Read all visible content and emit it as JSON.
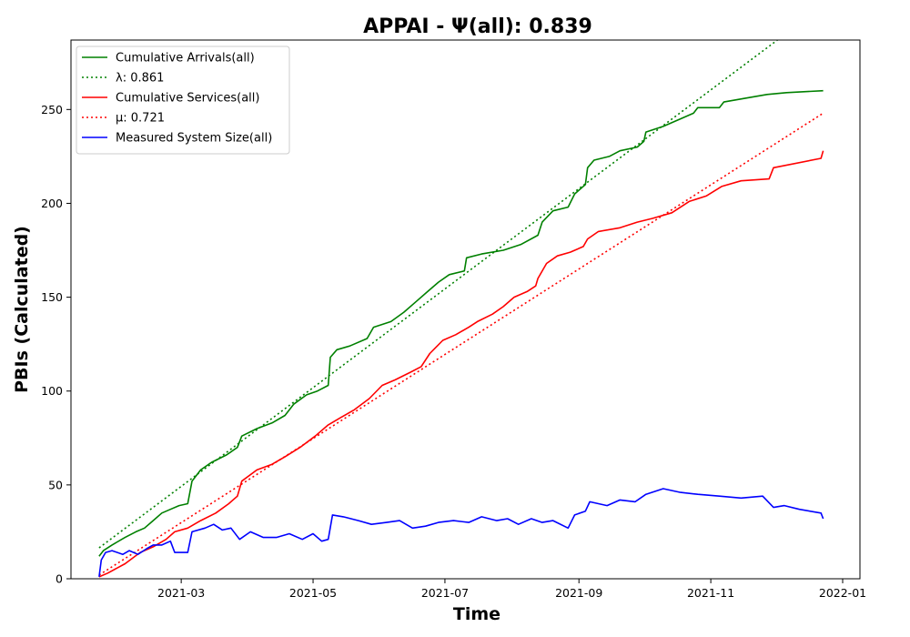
{
  "chart_data": {
    "type": "line",
    "title": "APPAI -  Ψ(all): 0.839",
    "xlabel": "Time",
    "ylabel": "PBIs (Calculated)",
    "x_type": "date",
    "xlim": [
      "2021-01-09",
      "2022-01-09"
    ],
    "ylim": [
      0,
      287
    ],
    "x_ticks": [
      "2021-03-01",
      "2021-05-01",
      "2021-07-01",
      "2021-09-01",
      "2021-11-01",
      "2022-01-01"
    ],
    "x_tick_labels": [
      "2021-03",
      "2021-05",
      "2021-07",
      "2021-09",
      "2021-11",
      "2022-01"
    ],
    "y_ticks": [
      0,
      50,
      100,
      150,
      200,
      250
    ],
    "grid": false,
    "legend_position": "top-left",
    "series": [
      {
        "name": "Cumulative Arrivals(all)",
        "color": "#008000",
        "style": "solid",
        "points": [
          [
            "2021-01-22",
            12
          ],
          [
            "2021-01-24",
            15
          ],
          [
            "2021-01-28",
            18
          ],
          [
            "2021-02-03",
            22
          ],
          [
            "2021-02-08",
            25
          ],
          [
            "2021-02-12",
            27
          ],
          [
            "2021-02-16",
            31
          ],
          [
            "2021-02-20",
            35
          ],
          [
            "2021-02-24",
            37
          ],
          [
            "2021-02-28",
            39
          ],
          [
            "2021-03-04",
            40
          ],
          [
            "2021-03-06",
            52
          ],
          [
            "2021-03-10",
            58
          ],
          [
            "2021-03-15",
            62
          ],
          [
            "2021-03-22",
            66
          ],
          [
            "2021-03-27",
            70
          ],
          [
            "2021-03-29",
            76
          ],
          [
            "2021-04-05",
            80
          ],
          [
            "2021-04-12",
            83
          ],
          [
            "2021-04-18",
            87
          ],
          [
            "2021-04-22",
            93
          ],
          [
            "2021-04-28",
            98
          ],
          [
            "2021-05-03",
            100
          ],
          [
            "2021-05-08",
            103
          ],
          [
            "2021-05-09",
            118
          ],
          [
            "2021-05-12",
            122
          ],
          [
            "2021-05-18",
            124
          ],
          [
            "2021-05-26",
            128
          ],
          [
            "2021-05-29",
            134
          ],
          [
            "2021-06-06",
            137
          ],
          [
            "2021-06-12",
            142
          ],
          [
            "2021-06-18",
            148
          ],
          [
            "2021-06-23",
            153
          ],
          [
            "2021-06-28",
            158
          ],
          [
            "2021-07-03",
            162
          ],
          [
            "2021-07-10",
            164
          ],
          [
            "2021-07-11",
            171
          ],
          [
            "2021-07-18",
            173
          ],
          [
            "2021-07-28",
            175
          ],
          [
            "2021-08-05",
            178
          ],
          [
            "2021-08-13",
            183
          ],
          [
            "2021-08-15",
            190
          ],
          [
            "2021-08-20",
            196
          ],
          [
            "2021-08-27",
            198
          ],
          [
            "2021-08-30",
            205
          ],
          [
            "2021-09-04",
            210
          ],
          [
            "2021-09-05",
            219
          ],
          [
            "2021-09-08",
            223
          ],
          [
            "2021-09-15",
            225
          ],
          [
            "2021-09-20",
            228
          ],
          [
            "2021-09-28",
            230
          ],
          [
            "2021-10-01",
            233
          ],
          [
            "2021-10-02",
            238
          ],
          [
            "2021-10-10",
            241
          ],
          [
            "2021-10-18",
            245
          ],
          [
            "2021-10-24",
            248
          ],
          [
            "2021-10-26",
            251
          ],
          [
            "2021-11-05",
            251
          ],
          [
            "2021-11-07",
            254
          ],
          [
            "2021-11-17",
            256
          ],
          [
            "2021-11-27",
            258
          ],
          [
            "2021-12-06",
            259
          ],
          [
            "2021-12-23",
            260
          ]
        ]
      },
      {
        "name": "λ: 0.861",
        "color": "#008000",
        "style": "dotted",
        "points": [
          [
            "2021-01-22",
            16.5
          ],
          [
            "2021-12-03",
            288
          ]
        ]
      },
      {
        "name": "Cumulative Services(all)",
        "color": "#ff0000",
        "style": "solid",
        "points": [
          [
            "2021-01-22",
            1
          ],
          [
            "2021-01-26",
            3
          ],
          [
            "2021-02-03",
            8
          ],
          [
            "2021-02-10",
            14
          ],
          [
            "2021-02-16",
            17
          ],
          [
            "2021-02-22",
            21
          ],
          [
            "2021-02-26",
            25
          ],
          [
            "2021-03-04",
            27
          ],
          [
            "2021-03-10",
            31
          ],
          [
            "2021-03-17",
            35
          ],
          [
            "2021-03-23",
            40
          ],
          [
            "2021-03-27",
            44
          ],
          [
            "2021-03-29",
            52
          ],
          [
            "2021-04-05",
            58
          ],
          [
            "2021-04-12",
            61
          ],
          [
            "2021-04-18",
            65
          ],
          [
            "2021-04-25",
            70
          ],
          [
            "2021-05-02",
            76
          ],
          [
            "2021-05-08",
            82
          ],
          [
            "2021-05-14",
            86
          ],
          [
            "2021-05-20",
            90
          ],
          [
            "2021-05-27",
            96
          ],
          [
            "2021-06-02",
            103
          ],
          [
            "2021-06-08",
            106
          ],
          [
            "2021-06-15",
            110
          ],
          [
            "2021-06-20",
            113
          ],
          [
            "2021-06-24",
            120
          ],
          [
            "2021-06-30",
            127
          ],
          [
            "2021-07-06",
            130
          ],
          [
            "2021-07-12",
            134
          ],
          [
            "2021-07-16",
            137
          ],
          [
            "2021-07-23",
            141
          ],
          [
            "2021-07-28",
            145
          ],
          [
            "2021-08-02",
            150
          ],
          [
            "2021-08-08",
            153
          ],
          [
            "2021-08-12",
            156
          ],
          [
            "2021-08-13",
            160
          ],
          [
            "2021-08-17",
            168
          ],
          [
            "2021-08-22",
            172
          ],
          [
            "2021-08-28",
            174
          ],
          [
            "2021-09-03",
            177
          ],
          [
            "2021-09-05",
            181
          ],
          [
            "2021-09-10",
            185
          ],
          [
            "2021-09-20",
            187
          ],
          [
            "2021-09-28",
            190
          ],
          [
            "2021-10-05",
            192
          ],
          [
            "2021-10-14",
            195
          ],
          [
            "2021-10-22",
            201
          ],
          [
            "2021-10-30",
            204
          ],
          [
            "2021-11-06",
            209
          ],
          [
            "2021-11-15",
            212
          ],
          [
            "2021-11-28",
            213
          ],
          [
            "2021-11-30",
            219
          ],
          [
            "2021-12-22",
            224
          ],
          [
            "2021-12-23",
            228
          ]
        ]
      },
      {
        "name": "μ: 0.721",
        "color": "#ff0000",
        "style": "dotted",
        "points": [
          [
            "2021-01-22",
            2
          ],
          [
            "2021-12-23",
            248
          ]
        ]
      },
      {
        "name": "Measured System Size(all)",
        "color": "#0000ff",
        "style": "solid",
        "points": [
          [
            "2021-01-22",
            1
          ],
          [
            "2021-01-23",
            10
          ],
          [
            "2021-01-25",
            14
          ],
          [
            "2021-01-28",
            15
          ],
          [
            "2021-02-02",
            13
          ],
          [
            "2021-02-05",
            15
          ],
          [
            "2021-02-09",
            13
          ],
          [
            "2021-02-13",
            16
          ],
          [
            "2021-02-16",
            18
          ],
          [
            "2021-02-20",
            18
          ],
          [
            "2021-02-24",
            20
          ],
          [
            "2021-02-26",
            14
          ],
          [
            "2021-03-02",
            14
          ],
          [
            "2021-03-04",
            14
          ],
          [
            "2021-03-06",
            25
          ],
          [
            "2021-03-12",
            27
          ],
          [
            "2021-03-16",
            29
          ],
          [
            "2021-03-20",
            26
          ],
          [
            "2021-03-24",
            27
          ],
          [
            "2021-03-28",
            21
          ],
          [
            "2021-04-02",
            25
          ],
          [
            "2021-04-08",
            22
          ],
          [
            "2021-04-14",
            22
          ],
          [
            "2021-04-20",
            24
          ],
          [
            "2021-04-26",
            21
          ],
          [
            "2021-05-01",
            24
          ],
          [
            "2021-05-05",
            20
          ],
          [
            "2021-05-08",
            21
          ],
          [
            "2021-05-10",
            34
          ],
          [
            "2021-05-15",
            33
          ],
          [
            "2021-05-22",
            31
          ],
          [
            "2021-05-28",
            29
          ],
          [
            "2021-06-04",
            30
          ],
          [
            "2021-06-10",
            31
          ],
          [
            "2021-06-16",
            27
          ],
          [
            "2021-06-22",
            28
          ],
          [
            "2021-06-28",
            30
          ],
          [
            "2021-07-05",
            31
          ],
          [
            "2021-07-12",
            30
          ],
          [
            "2021-07-18",
            33
          ],
          [
            "2021-07-25",
            31
          ],
          [
            "2021-07-30",
            32
          ],
          [
            "2021-08-04",
            29
          ],
          [
            "2021-08-10",
            32
          ],
          [
            "2021-08-15",
            30
          ],
          [
            "2021-08-20",
            31
          ],
          [
            "2021-08-27",
            27
          ],
          [
            "2021-08-30",
            34
          ],
          [
            "2021-09-04",
            36
          ],
          [
            "2021-09-06",
            41
          ],
          [
            "2021-09-14",
            39
          ],
          [
            "2021-09-20",
            42
          ],
          [
            "2021-09-27",
            41
          ],
          [
            "2021-10-02",
            45
          ],
          [
            "2021-10-10",
            48
          ],
          [
            "2021-10-18",
            46
          ],
          [
            "2021-10-26",
            45
          ],
          [
            "2021-11-05",
            44
          ],
          [
            "2021-11-15",
            43
          ],
          [
            "2021-11-25",
            44
          ],
          [
            "2021-11-30",
            38
          ],
          [
            "2021-12-05",
            39
          ],
          [
            "2021-12-12",
            37
          ],
          [
            "2021-12-22",
            35
          ],
          [
            "2021-12-23",
            32
          ]
        ]
      }
    ]
  }
}
